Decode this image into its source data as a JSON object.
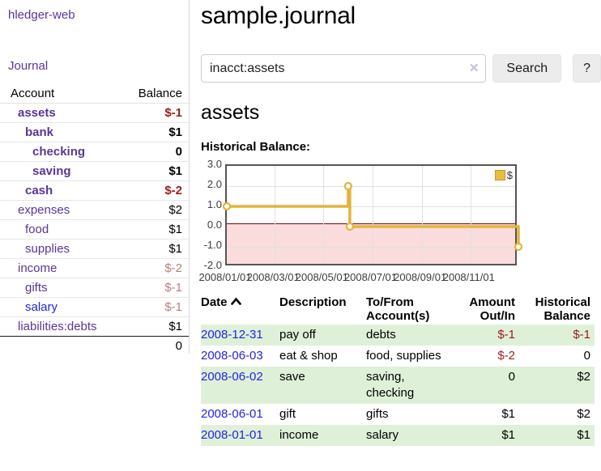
{
  "app": {
    "brand": "hledger-web",
    "nav_journal": "Journal"
  },
  "sidebar": {
    "header": {
      "account": "Account",
      "balance": "Balance"
    },
    "accounts": [
      {
        "name": "assets",
        "balance": "$-1",
        "level": 1,
        "bold": true,
        "balance_style": "neg-strong",
        "link_style": "purple"
      },
      {
        "name": "bank",
        "balance": "$1",
        "level": 2,
        "bold": true,
        "balance_style": "normal",
        "link_style": "purple"
      },
      {
        "name": "checking",
        "balance": "0",
        "level": 3,
        "bold": true,
        "balance_style": "normal",
        "link_style": "purple"
      },
      {
        "name": "saving",
        "balance": "$1",
        "level": 3,
        "bold": true,
        "balance_style": "normal",
        "link_style": "purple"
      },
      {
        "name": "cash",
        "balance": "$-2",
        "level": 2,
        "bold": true,
        "balance_style": "neg-strong",
        "link_style": "purple"
      },
      {
        "name": "expenses",
        "balance": "$2",
        "level": 1,
        "bold": false,
        "balance_style": "normal",
        "link_style": "purple"
      },
      {
        "name": "food",
        "balance": "$1",
        "level": 2,
        "bold": false,
        "balance_style": "normal",
        "link_style": "purple"
      },
      {
        "name": "supplies",
        "balance": "$1",
        "level": 2,
        "bold": false,
        "balance_style": "normal",
        "link_style": "purple"
      },
      {
        "name": "income",
        "balance": "$-2",
        "level": 1,
        "bold": false,
        "balance_style": "neg-dim",
        "link_style": "purple"
      },
      {
        "name": "gifts",
        "balance": "$-1",
        "level": 2,
        "bold": false,
        "balance_style": "neg-dim",
        "link_style": "purple"
      },
      {
        "name": "salary",
        "balance": "$-1",
        "level": 2,
        "bold": false,
        "balance_style": "neg-dim",
        "link_style": "blue"
      },
      {
        "name": "liabilities:debts",
        "balance": "$1",
        "level": 1,
        "bold": false,
        "balance_style": "normal",
        "link_style": "purple"
      }
    ],
    "total": "0"
  },
  "header": {
    "title": "sample.journal"
  },
  "search": {
    "value": "inacct:assets",
    "clear_icon": "✕",
    "search_label": "Search",
    "help_label": "?"
  },
  "main": {
    "account_title": "assets",
    "chart_label": "Historical Balance:"
  },
  "chart_data": {
    "type": "line",
    "title": "Historical Balance",
    "legend": "$",
    "legend_position": "top-right",
    "step": true,
    "series": [
      {
        "name": "$",
        "color": "#e3b43a",
        "points": [
          {
            "x": "2008/01/01",
            "y": 1
          },
          {
            "x": "2008/06/01",
            "y": 2
          },
          {
            "x": "2008/06/03",
            "y": 0
          },
          {
            "x": "2008/12/31",
            "y": -1
          }
        ]
      }
    ],
    "x_range": [
      "2008/01/01",
      "2008/12/31"
    ],
    "x_ticks": [
      "2008/01/01",
      "2008/03/01",
      "2008/05/01",
      "2008/07/01",
      "2008/09/01",
      "2008/11/01"
    ],
    "y_ticks": [
      3.0,
      2.0,
      1.0,
      0.0,
      -1.0,
      -2.0
    ],
    "y_tick_labels": [
      "3.0",
      "2.0",
      "1.0",
      "0.0",
      "-1.0",
      "-2.0"
    ],
    "ylim": [
      -2,
      3
    ],
    "grid": true,
    "negative_region_fill": "#fbdcdc",
    "zero_line_color": "#800000"
  },
  "register": {
    "headers": [
      {
        "line1": "Date",
        "line2": "",
        "align": "left",
        "sort_icon": true
      },
      {
        "line1": "Description",
        "line2": "",
        "align": "left",
        "sort_icon": false
      },
      {
        "line1": "To/From",
        "line2": "Account(s)",
        "align": "left",
        "sort_icon": false
      },
      {
        "line1": "Amount",
        "line2": "Out/In",
        "align": "right",
        "sort_icon": false
      },
      {
        "line1": "Historical",
        "line2": "Balance",
        "align": "right",
        "sort_icon": false
      }
    ],
    "rows": [
      {
        "date": "2008-12-31",
        "description": "pay off",
        "accounts": "debts",
        "amount": "$-1",
        "amount_negative": true,
        "balance": "$-1",
        "balance_negative": true
      },
      {
        "date": "2008-06-03",
        "description": "eat & shop",
        "accounts": "food, supplies",
        "amount": "$-2",
        "amount_negative": true,
        "balance": "0",
        "balance_negative": false
      },
      {
        "date": "2008-06-02",
        "description": "save",
        "accounts": "saving, checking",
        "amount": "0",
        "amount_negative": false,
        "balance": "$2",
        "balance_negative": false
      },
      {
        "date": "2008-06-01",
        "description": "gift",
        "accounts": "gifts",
        "amount": "$1",
        "amount_negative": false,
        "balance": "$2",
        "balance_negative": false
      },
      {
        "date": "2008-01-01",
        "description": "income",
        "accounts": "salary",
        "amount": "$1",
        "amount_negative": false,
        "balance": "$1",
        "balance_negative": false
      }
    ]
  }
}
